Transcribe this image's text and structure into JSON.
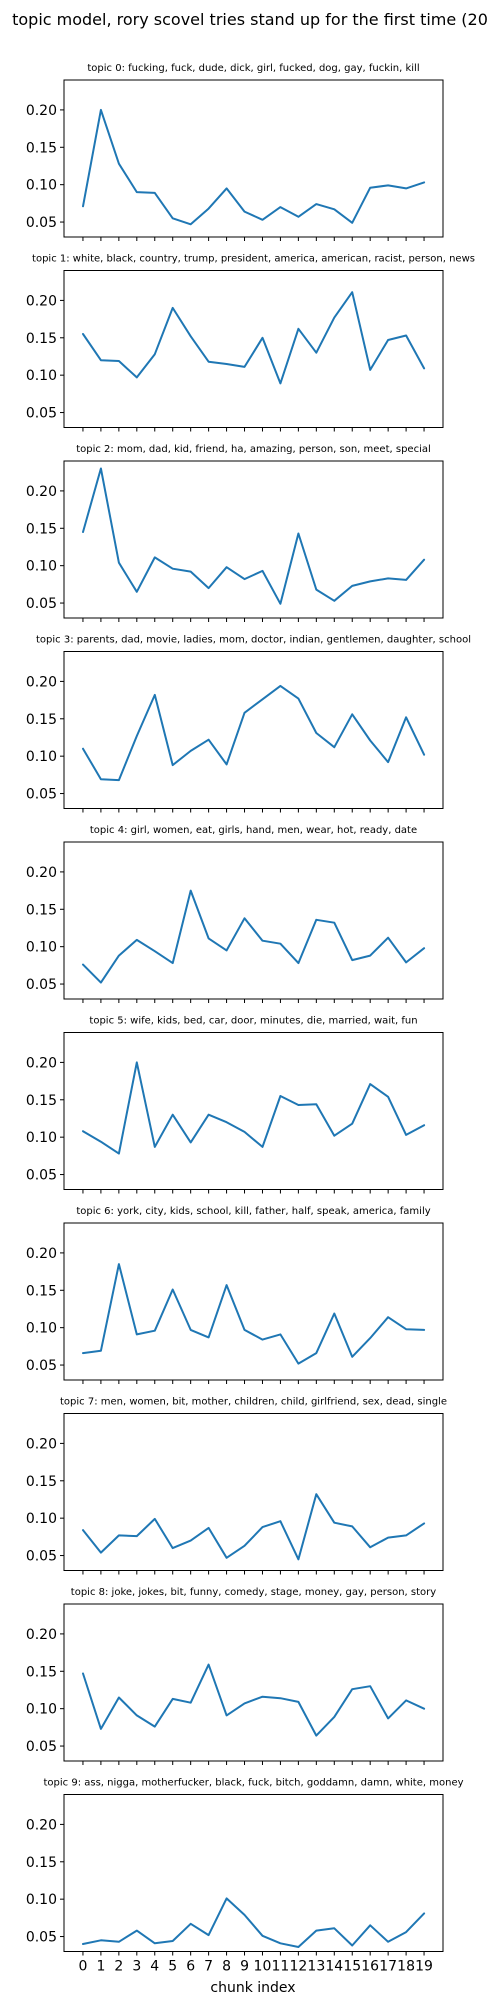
{
  "figure": {
    "title": "topic model, rory scovel tries stand up for the first time (20",
    "xlabel": "chunk index",
    "xticks": [
      "0",
      "1",
      "2",
      "3",
      "4",
      "5",
      "6",
      "7",
      "8",
      "9",
      "10",
      "11",
      "12",
      "13",
      "14",
      "15",
      "16",
      "17",
      "18",
      "19"
    ],
    "yticks": [
      "0.05",
      "0.10",
      "0.15",
      "0.20"
    ],
    "line_color": "#1f77b4"
  },
  "chart_data": [
    {
      "type": "line",
      "title": "topic 0: fucking, fuck, dude, dick, girl, fucked, dog, gay, fuckin, kill",
      "xlabel": "",
      "ylabel": "",
      "ylim": [
        0.03,
        0.24
      ],
      "grid": false,
      "x": [
        0,
        1,
        2,
        3,
        4,
        5,
        6,
        7,
        8,
        9,
        10,
        11,
        12,
        13,
        14,
        15,
        16,
        17,
        18,
        19
      ],
      "values": [
        0.071,
        0.2,
        0.128,
        0.09,
        0.089,
        0.055,
        0.047,
        0.068,
        0.095,
        0.064,
        0.053,
        0.07,
        0.057,
        0.074,
        0.067,
        0.049,
        0.096,
        0.099,
        0.095,
        0.103
      ]
    },
    {
      "type": "line",
      "title": "topic 1: white, black, country, trump, president, america, american, racist, person, news",
      "xlabel": "",
      "ylabel": "",
      "ylim": [
        0.03,
        0.24
      ],
      "grid": false,
      "x": [
        0,
        1,
        2,
        3,
        4,
        5,
        6,
        7,
        8,
        9,
        10,
        11,
        12,
        13,
        14,
        15,
        16,
        17,
        18,
        19
      ],
      "values": [
        0.155,
        0.12,
        0.119,
        0.097,
        0.128,
        0.19,
        0.152,
        0.118,
        0.115,
        0.111,
        0.15,
        0.089,
        0.162,
        0.13,
        0.177,
        0.211,
        0.107,
        0.147,
        0.153,
        0.109
      ]
    },
    {
      "type": "line",
      "title": "topic 2: mom, dad, kid, friend, ha, amazing, person, son, meet, special",
      "xlabel": "",
      "ylabel": "",
      "ylim": [
        0.03,
        0.24
      ],
      "grid": false,
      "x": [
        0,
        1,
        2,
        3,
        4,
        5,
        6,
        7,
        8,
        9,
        10,
        11,
        12,
        13,
        14,
        15,
        16,
        17,
        18,
        19
      ],
      "values": [
        0.145,
        0.23,
        0.104,
        0.065,
        0.111,
        0.096,
        0.092,
        0.07,
        0.098,
        0.082,
        0.093,
        0.049,
        0.143,
        0.068,
        0.053,
        0.073,
        0.079,
        0.083,
        0.081,
        0.108
      ]
    },
    {
      "type": "line",
      "title": "topic 3: parents, dad, movie, ladies, mom, doctor, indian, gentlemen, daughter, school",
      "xlabel": "",
      "ylabel": "",
      "ylim": [
        0.03,
        0.24
      ],
      "grid": false,
      "x": [
        0,
        1,
        2,
        3,
        4,
        5,
        6,
        7,
        8,
        9,
        10,
        11,
        12,
        13,
        14,
        15,
        16,
        17,
        18,
        19
      ],
      "values": [
        0.11,
        0.069,
        0.068,
        0.127,
        0.182,
        0.088,
        0.107,
        0.122,
        0.089,
        0.158,
        0.176,
        0.194,
        0.177,
        0.131,
        0.112,
        0.156,
        0.121,
        0.092,
        0.152,
        0.102
      ]
    },
    {
      "type": "line",
      "title": "topic 4: girl, women, eat, girls, hand, men, wear, hot, ready, date",
      "xlabel": "",
      "ylabel": "",
      "ylim": [
        0.03,
        0.24
      ],
      "grid": false,
      "x": [
        0,
        1,
        2,
        3,
        4,
        5,
        6,
        7,
        8,
        9,
        10,
        11,
        12,
        13,
        14,
        15,
        16,
        17,
        18,
        19
      ],
      "values": [
        0.076,
        0.052,
        0.088,
        0.109,
        0.094,
        0.078,
        0.175,
        0.111,
        0.095,
        0.138,
        0.108,
        0.104,
        0.078,
        0.136,
        0.132,
        0.082,
        0.088,
        0.112,
        0.079,
        0.098
      ]
    },
    {
      "type": "line",
      "title": "topic 5: wife, kids, bed, car, door, minutes, die, married, wait, fun",
      "xlabel": "",
      "ylabel": "",
      "ylim": [
        0.03,
        0.24
      ],
      "grid": false,
      "x": [
        0,
        1,
        2,
        3,
        4,
        5,
        6,
        7,
        8,
        9,
        10,
        11,
        12,
        13,
        14,
        15,
        16,
        17,
        18,
        19
      ],
      "values": [
        0.108,
        0.094,
        0.078,
        0.2,
        0.087,
        0.13,
        0.093,
        0.13,
        0.12,
        0.107,
        0.087,
        0.155,
        0.143,
        0.144,
        0.102,
        0.118,
        0.171,
        0.154,
        0.103,
        0.116
      ]
    },
    {
      "type": "line",
      "title": "topic 6: york, city, kids, school, kill, father, half, speak, america, family",
      "xlabel": "",
      "ylabel": "",
      "ylim": [
        0.03,
        0.24
      ],
      "grid": false,
      "x": [
        0,
        1,
        2,
        3,
        4,
        5,
        6,
        7,
        8,
        9,
        10,
        11,
        12,
        13,
        14,
        15,
        16,
        17,
        18,
        19
      ],
      "values": [
        0.066,
        0.069,
        0.185,
        0.091,
        0.096,
        0.151,
        0.097,
        0.087,
        0.157,
        0.097,
        0.084,
        0.091,
        0.052,
        0.066,
        0.119,
        0.061,
        0.086,
        0.114,
        0.098,
        0.097
      ]
    },
    {
      "type": "line",
      "title": "topic 7: men, women, bit, mother, children, child, girlfriend, sex, dead, single",
      "xlabel": "",
      "ylabel": "",
      "ylim": [
        0.03,
        0.24
      ],
      "grid": false,
      "x": [
        0,
        1,
        2,
        3,
        4,
        5,
        6,
        7,
        8,
        9,
        10,
        11,
        12,
        13,
        14,
        15,
        16,
        17,
        18,
        19
      ],
      "values": [
        0.084,
        0.054,
        0.077,
        0.076,
        0.099,
        0.06,
        0.07,
        0.087,
        0.047,
        0.063,
        0.088,
        0.096,
        0.045,
        0.132,
        0.094,
        0.089,
        0.061,
        0.074,
        0.077,
        0.093
      ]
    },
    {
      "type": "line",
      "title": "topic 8: joke, jokes, bit, funny, comedy, stage, money, gay, person, story",
      "xlabel": "",
      "ylabel": "",
      "ylim": [
        0.03,
        0.24
      ],
      "grid": false,
      "x": [
        0,
        1,
        2,
        3,
        4,
        5,
        6,
        7,
        8,
        9,
        10,
        11,
        12,
        13,
        14,
        15,
        16,
        17,
        18,
        19
      ],
      "values": [
        0.147,
        0.073,
        0.115,
        0.091,
        0.076,
        0.113,
        0.108,
        0.159,
        0.091,
        0.107,
        0.116,
        0.114,
        0.109,
        0.064,
        0.089,
        0.126,
        0.13,
        0.087,
        0.111,
        0.1
      ]
    },
    {
      "type": "line",
      "title": "topic 9: ass, nigga, motherfucker, black, fuck, bitch, goddamn, damn, white, money",
      "xlabel": "",
      "ylabel": "",
      "ylim": [
        0.03,
        0.24
      ],
      "grid": false,
      "x": [
        0,
        1,
        2,
        3,
        4,
        5,
        6,
        7,
        8,
        9,
        10,
        11,
        12,
        13,
        14,
        15,
        16,
        17,
        18,
        19
      ],
      "values": [
        0.04,
        0.045,
        0.043,
        0.058,
        0.041,
        0.044,
        0.067,
        0.052,
        0.101,
        0.079,
        0.051,
        0.041,
        0.036,
        0.058,
        0.061,
        0.038,
        0.065,
        0.043,
        0.056,
        0.081
      ]
    }
  ]
}
